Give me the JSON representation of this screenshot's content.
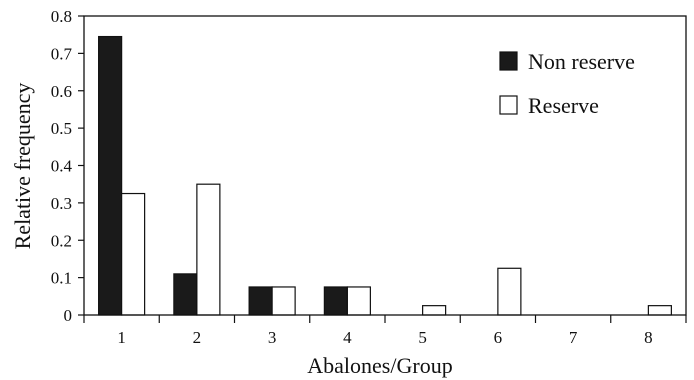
{
  "chart_data": {
    "type": "bar",
    "categories": [
      "1",
      "2",
      "3",
      "4",
      "5",
      "6",
      "7",
      "8"
    ],
    "series": [
      {
        "name": "Non reserve",
        "color": "#1a1a1a",
        "values": [
          0.745,
          0.11,
          0.075,
          0.075,
          0,
          0,
          0,
          0
        ]
      },
      {
        "name": "Reserve",
        "color": "#ffffff",
        "values": [
          0.325,
          0.35,
          0.075,
          0.075,
          0.025,
          0.125,
          0,
          0.025
        ]
      }
    ],
    "xlabel": "Abalones/Group",
    "ylabel": "Relative frequency",
    "ylim": [
      0,
      0.8
    ],
    "yticks": [
      "0",
      "0.1",
      "0.2",
      "0.3",
      "0.4",
      "0.5",
      "0.6",
      "0.7",
      "0.8"
    ],
    "grid": false,
    "legend_position": "top-right"
  }
}
